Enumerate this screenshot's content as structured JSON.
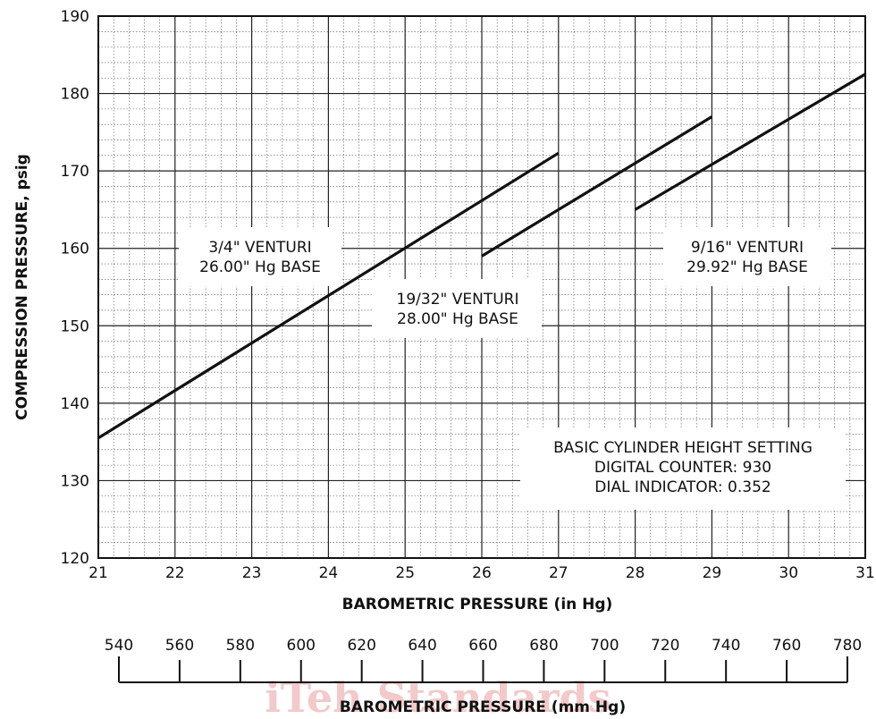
{
  "chart_data": {
    "type": "line",
    "title": "",
    "xlabel": "BAROMETRIC PRESSURE (in Hg)",
    "ylabel": "COMPRESSION PRESSURE, psig",
    "xlim": [
      21,
      31
    ],
    "ylim": [
      120,
      190
    ],
    "x_ticks": [
      "21",
      "22",
      "23",
      "24",
      "25",
      "26",
      "27",
      "28",
      "29",
      "30",
      "31"
    ],
    "y_ticks": [
      "120",
      "130",
      "140",
      "150",
      "160",
      "170",
      "180",
      "190"
    ],
    "grid": true,
    "series": [
      {
        "label_lines": [
          "3/4\" VENTURI",
          "26.00\" Hg BASE"
        ],
        "points": [
          [
            21,
            135.5
          ],
          [
            27,
            172.3
          ]
        ]
      },
      {
        "label_lines": [
          "19/32\" VENTURI",
          "28.00\" Hg BASE"
        ],
        "points": [
          [
            26,
            159
          ],
          [
            29,
            177
          ]
        ]
      },
      {
        "label_lines": [
          "9/16\" VENTURI",
          "29.92\" Hg BASE"
        ],
        "points": [
          [
            28,
            165
          ],
          [
            31,
            182.5
          ]
        ]
      }
    ],
    "annotation": [
      "BASIC CYLINDER HEIGHT SETTING",
      "DIGITAL COUNTER: 930",
      "DIAL INDICATOR: 0.352"
    ],
    "secondary_axis": {
      "xlabel": "BAROMETRIC PRESSURE (mm Hg)",
      "ticks": [
        "540",
        "560",
        "580",
        "600",
        "620",
        "640",
        "660",
        "680",
        "700",
        "720",
        "740",
        "760",
        "780"
      ]
    }
  },
  "watermark": "iTeh Standards"
}
